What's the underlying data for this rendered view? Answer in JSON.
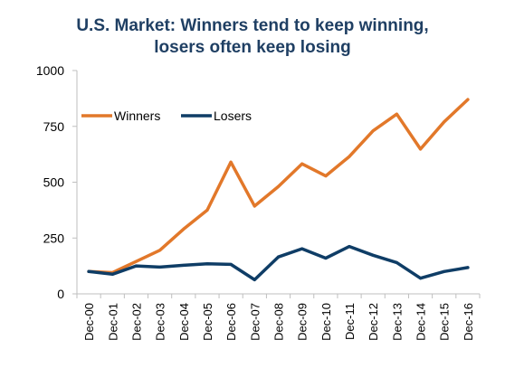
{
  "theme": {
    "title_color": "#1f3f63",
    "winners_color": "#e2782a",
    "losers_color": "#0f3d66",
    "axis_color": "#bfbfbf",
    "text_color": "#000000"
  },
  "chart_data": {
    "type": "line",
    "title": "U.S. Market: Winners tend to keep winning,",
    "subtitle": "losers often keep losing",
    "categories": [
      "Dec-00",
      "Dec-01",
      "Dec-02",
      "Dec-03",
      "Dec-04",
      "Dec-05",
      "Dec-06",
      "Dec-07",
      "Dec-08",
      "Dec-09",
      "Dec-10",
      "Dec-11",
      "Dec-12",
      "Dec-13",
      "Dec-14",
      "Dec-15",
      "Dec-16"
    ],
    "series": [
      {
        "name": "Winners",
        "values": [
          100,
          95,
          145,
          195,
          290,
          375,
          590,
          393,
          480,
          582,
          528,
          615,
          730,
          805,
          648,
          770,
          870
        ]
      },
      {
        "name": "Losers",
        "values": [
          100,
          88,
          125,
          120,
          128,
          135,
          132,
          63,
          165,
          202,
          160,
          212,
          173,
          140,
          70,
          100,
          118
        ]
      }
    ],
    "ylim": [
      0,
      1000
    ],
    "yticks": [
      "0",
      "250",
      "500",
      "750",
      "1000"
    ],
    "xlabel": "",
    "ylabel": "",
    "grid": false,
    "legend_position": "top-left"
  }
}
